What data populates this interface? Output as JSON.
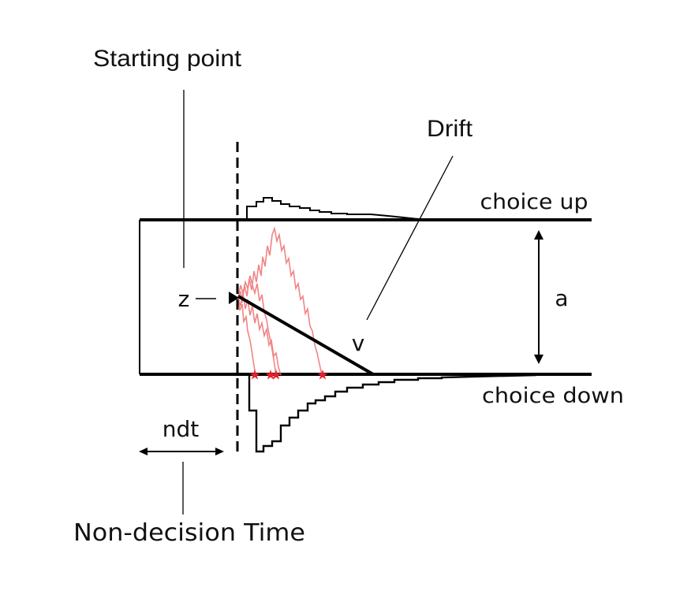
{
  "labels": {
    "starting_point": "Starting point",
    "drift": "Drift",
    "choice_up": "choice up",
    "choice_down": "choice down",
    "z": "z",
    "v": "v",
    "a": "a",
    "ndt": "ndt",
    "non_decision_time": "Non-decision Time"
  },
  "colors": {
    "line": "#000000",
    "trajectory": "#ef6f6f",
    "star": "#e8212a",
    "text": "#111111"
  }
}
